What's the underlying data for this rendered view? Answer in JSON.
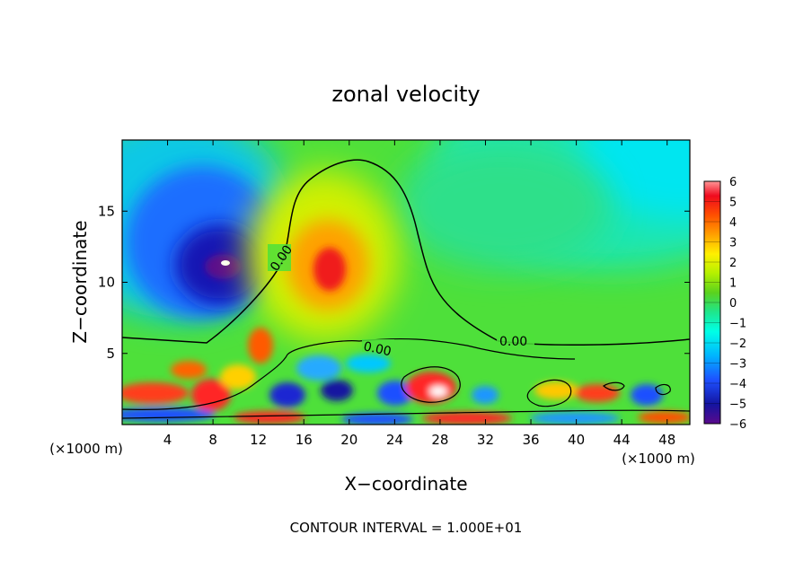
{
  "chart_data": {
    "type": "heatmap",
    "title": "zonal velocity",
    "xlabel": "X−coordinate",
    "ylabel": "Z−coordinate",
    "x_unit_label": "(×1000 m)",
    "x_unit_label_right": "(×1000 m)",
    "xlim": [
      0,
      50
    ],
    "ylim": [
      0,
      20
    ],
    "x_ticks": [
      4,
      8,
      12,
      16,
      20,
      24,
      28,
      32,
      36,
      40,
      44,
      48
    ],
    "y_ticks": [
      5,
      10,
      15
    ],
    "colorbar": {
      "min": -6,
      "max": 6,
      "tick_labels": [
        "6",
        "5",
        "4",
        "3",
        "2",
        "1",
        "0",
        "−1",
        "−2",
        "−3",
        "−4",
        "−5",
        "−6"
      ],
      "tick_values": [
        6,
        5,
        4,
        3,
        2,
        1,
        0,
        -1,
        -2,
        -3,
        -4,
        -5,
        -6
      ]
    },
    "contour_labels": [
      "0.00",
      "0.00",
      "0.00"
    ],
    "footer": "CONTOUR INTERVAL = 1.000E+01",
    "features": [
      {
        "name": "negative core (upper left)",
        "x": 9.2,
        "z": 11.3,
        "value": -6
      },
      {
        "name": "positive core (center)",
        "x": 18.2,
        "z": 11.0,
        "value": 4
      },
      {
        "name": "positive patch",
        "x": 7.5,
        "z": 2.0,
        "value": 5
      },
      {
        "name": "positive patch",
        "x": 27.5,
        "z": 2.5,
        "value": 5
      },
      {
        "name": "negative patch",
        "x": 14.5,
        "z": 2.0,
        "value": -4
      },
      {
        "name": "negative patch",
        "x": 22.0,
        "z": 2.2,
        "value": -4
      },
      {
        "name": "positive patch",
        "x": 41.0,
        "z": 2.2,
        "value": 4
      }
    ]
  }
}
